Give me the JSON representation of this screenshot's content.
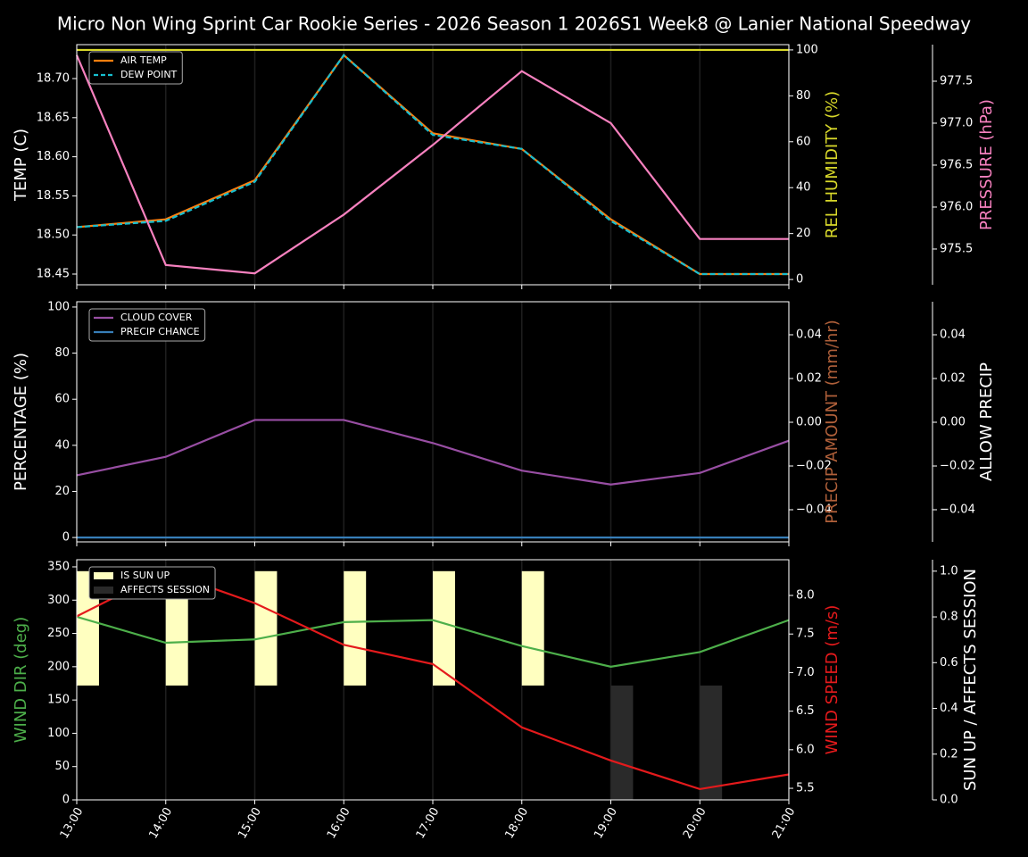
{
  "title": "Micro Non Wing Sprint Car Rookie Series - 2026 Season 1 2026S1 Week8 @ Lanier National Speedway",
  "chart_data": [
    {
      "type": "line",
      "legend": "upper left",
      "ylabel": "TEMP (C)",
      "ylim": [
        18.4363,
        18.7434
      ],
      "yticks": [
        18.45,
        {
          "value": 18.5,
          "label": "18.50"
        },
        18.55,
        {
          "value": 18.6,
          "label": "18.60"
        },
        18.65,
        {
          "value": 18.7,
          "label": "18.70"
        }
      ],
      "y2label": "REL HUMIDITY (%)",
      "y2color": "#d8d82a",
      "y2lim": [
        -2.3,
        102.3
      ],
      "y2ticks": [
        0,
        20,
        40,
        60,
        80,
        100
      ],
      "y3label": "PRESSURE (hPa)",
      "y3color": "#f781bf",
      "y3lim": [
        975.074,
        977.936
      ],
      "y3ticks": [
        975.5,
        {
          "value": 976,
          "label": "976.0"
        },
        976.5,
        {
          "value": 977,
          "label": "977.0"
        },
        977.5
      ],
      "series": [
        {
          "name": "AIR TEMP",
          "color": "#ff7f0e",
          "values": [
            18.51,
            18.52,
            18.57,
            18.73,
            18.63,
            18.61,
            18.52,
            18.45,
            18.45
          ]
        },
        {
          "name": "DEW POINT",
          "color": "#17becf",
          "style": "dashed",
          "values": [
            18.51,
            18.518,
            18.568,
            18.73,
            18.628,
            18.61,
            18.518,
            18.45,
            18.45
          ]
        },
        {
          "color": "#d8d82a",
          "axis": "y2",
          "values": [
            100,
            100,
            100,
            100,
            100,
            100,
            100,
            100,
            100
          ]
        },
        {
          "color": "#f781bf",
          "axis": "y3",
          "values": [
            977.81,
            975.31,
            975.21,
            975.91,
            976.74,
            977.62,
            977.0,
            975.62,
            975.62
          ]
        }
      ]
    },
    {
      "type": "line",
      "legend": "upper left",
      "ylabel": "PERCENTAGE (%)",
      "ylim": [
        -1.9,
        102.3
      ],
      "yticks": [
        0,
        20,
        40,
        60,
        80,
        100
      ],
      "y2label": "PRECIP AMOUNT (mm/hr)",
      "y2color": "#b0603a",
      "y2lim": [
        -0.0547,
        0.0551
      ],
      "y2ticks": [
        {
          "value": -0.04,
          "label": "−0.04"
        },
        {
          "value": -0.02,
          "label": "−0.02"
        },
        {
          "value": 0,
          "label": "0.00"
        },
        0.02,
        0.04
      ],
      "y3label": "ALLOW PRECIP",
      "y3lim": [
        -0.0547,
        0.0551
      ],
      "y3ticks": [
        {
          "value": -0.04,
          "label": "−0.04"
        },
        {
          "value": -0.02,
          "label": "−0.02"
        },
        {
          "value": 0,
          "label": "0.00"
        },
        0.02,
        0.04
      ],
      "series": [
        {
          "name": "CLOUD COVER",
          "color": "#984ea3",
          "values": [
            27,
            35,
            51,
            51,
            41,
            29,
            23,
            28,
            42
          ]
        },
        {
          "name": "PRECIP CHANCE",
          "color": "#377eb8",
          "values": [
            0,
            0,
            0,
            0,
            0,
            0,
            0,
            0,
            0
          ]
        }
      ]
    },
    {
      "type": "line",
      "legend": "upper left",
      "categories": [
        "13:00",
        "14:00",
        "15:00",
        "16:00",
        "17:00",
        "18:00",
        "19:00",
        "20:00",
        "21:00"
      ],
      "ylabel": "WIND DIR (deg)",
      "ycolor": "#4daf4a",
      "ylim": [
        0,
        360.7
      ],
      "yticks": [
        0,
        50,
        100,
        150,
        200,
        250,
        300,
        350
      ],
      "y2label": "WIND SPEED (m/s)",
      "y2color": "#e41a1c",
      "y2lim": [
        5.35,
        8.463
      ],
      "y2ticks": [
        5.5,
        {
          "value": 6,
          "label": "6.0"
        },
        6.5,
        {
          "value": 7,
          "label": "7.0"
        },
        7.5,
        {
          "value": 8,
          "label": "8.0"
        }
      ],
      "y3label": "SUN UP / AFFECTS SESSION",
      "y3lim": [
        0,
        1.05
      ],
      "y3ticks": [
        {
          "value": 0,
          "label": "0.0"
        },
        0.2,
        0.4,
        0.6,
        0.8,
        {
          "value": 1,
          "label": "1.0"
        }
      ],
      "series": [
        {
          "name": "IS SUN UP",
          "type": "bar",
          "bar_from": "half",
          "color": "#ffffc0",
          "axis": "y3",
          "values": [
            1,
            1,
            1,
            1,
            1,
            1,
            0,
            0,
            0
          ]
        },
        {
          "name": "AFFECTS SESSION",
          "type": "bar",
          "color": "#2a2a2a",
          "axis": "y3",
          "values": [
            0,
            0,
            0,
            0,
            0,
            0,
            0.5,
            0.5,
            0
          ]
        },
        {
          "color": "#4daf4a",
          "values": [
            275,
            236,
            241,
            267,
            270,
            231,
            200,
            222,
            270
          ]
        },
        {
          "color": "#e41a1c",
          "axis": "y2",
          "values": [
            7.73,
            8.31,
            7.9,
            7.36,
            7.11,
            6.29,
            5.86,
            5.49,
            5.68
          ]
        }
      ]
    }
  ]
}
